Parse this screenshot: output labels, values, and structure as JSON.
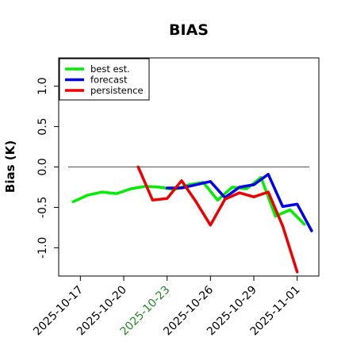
{
  "chart_data": {
    "type": "line",
    "title": "BIAS",
    "xlabel": "",
    "ylabel": "Bias (K)",
    "x_type": "date",
    "xlim": [
      "2025-10-15T12:00",
      "2025-11-02T12:00"
    ],
    "ylim": [
      -1.35,
      1.35
    ],
    "yticks": [
      -1.0,
      -0.5,
      0.0,
      0.5,
      1.0
    ],
    "ytick_labels": [
      "-1.0",
      "-0.5",
      "0.0",
      "0.5",
      "1.0"
    ],
    "xticks": [
      "2025-10-17",
      "2025-10-20",
      "2025-10-23",
      "2025-10-26",
      "2025-10-29",
      "2025-11-01"
    ],
    "xtick_colors": [
      "#000000",
      "#000000",
      "#228b22",
      "#000000",
      "#000000",
      "#000000"
    ],
    "reference_line": 0,
    "grid": false,
    "legend_position": "top-left",
    "series": [
      {
        "name": "best est.",
        "color": "#00ee00",
        "points": [
          [
            "2025-10-16T12:00",
            -0.43
          ],
          [
            "2025-10-17T12:00",
            -0.35
          ],
          [
            "2025-10-18T12:00",
            -0.31
          ],
          [
            "2025-10-19T12:00",
            -0.33
          ],
          [
            "2025-10-20T12:00",
            -0.27
          ],
          [
            "2025-10-21T12:00",
            -0.24
          ],
          [
            "2025-10-22T12:00",
            -0.25
          ],
          [
            "2025-10-23T12:00",
            -0.28
          ],
          [
            "2025-10-24T12:00",
            -0.22
          ],
          [
            "2025-10-25T12:00",
            -0.19
          ],
          [
            "2025-10-26T12:00",
            -0.41
          ],
          [
            "2025-10-27T12:00",
            -0.25
          ],
          [
            "2025-10-28T12:00",
            -0.27
          ],
          [
            "2025-10-29T12:00",
            -0.13
          ],
          [
            "2025-10-30T12:00",
            -0.61
          ],
          [
            "2025-10-31T12:00",
            -0.53
          ],
          [
            "2025-11-01T12:00",
            -0.71
          ]
        ]
      },
      {
        "name": "forecast",
        "color": "#0000ee",
        "points": [
          [
            "2025-10-23T00:00",
            -0.26
          ],
          [
            "2025-10-24T00:00",
            -0.26
          ],
          [
            "2025-10-25T00:00",
            -0.22
          ],
          [
            "2025-10-26T00:00",
            -0.18
          ],
          [
            "2025-10-27T00:00",
            -0.38
          ],
          [
            "2025-10-28T00:00",
            -0.25
          ],
          [
            "2025-10-29T00:00",
            -0.22
          ],
          [
            "2025-10-30T00:00",
            -0.09
          ],
          [
            "2025-10-31T00:00",
            -0.49
          ],
          [
            "2025-11-01T00:00",
            -0.46
          ],
          [
            "2025-11-02T00:00",
            -0.79
          ]
        ]
      },
      {
        "name": "persistence",
        "color": "#ee0000",
        "points": [
          [
            "2025-10-21T00:00",
            0.0
          ],
          [
            "2025-10-22T00:00",
            -0.41
          ],
          [
            "2025-10-23T00:00",
            -0.39
          ],
          [
            "2025-10-24T00:00",
            -0.17
          ],
          [
            "2025-10-25T00:00",
            -0.43
          ],
          [
            "2025-10-26T00:00",
            -0.72
          ],
          [
            "2025-10-27T00:00",
            -0.4
          ],
          [
            "2025-10-28T00:00",
            -0.32
          ],
          [
            "2025-10-29T00:00",
            -0.37
          ],
          [
            "2025-10-30T00:00",
            -0.31
          ],
          [
            "2025-10-31T00:00",
            -0.73
          ],
          [
            "2025-11-01T00:00",
            -1.3
          ]
        ]
      }
    ]
  }
}
